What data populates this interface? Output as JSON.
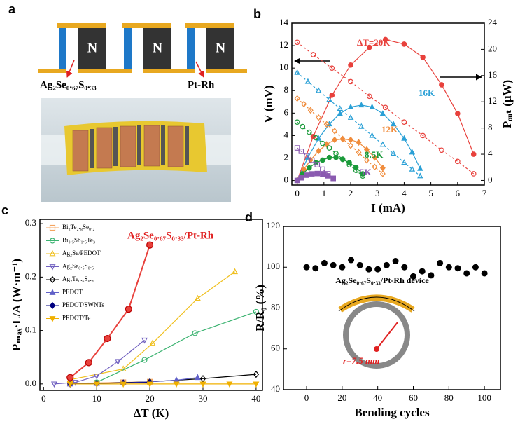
{
  "schematic": {
    "panel_label": "a",
    "block_labels": [
      "N",
      "N",
      "N"
    ],
    "material_label": "Ag₂Se₀.₆₇S₀.₃₃",
    "wire_label": "Pt-Rh"
  },
  "chart_data": [
    {
      "type": "dual-line",
      "panel_label": "b",
      "xlabel": "I (mA)",
      "ylabel": "V (mV)",
      "y2label": "Pₒᵤₜ (μW)",
      "xlim": [
        -0.2,
        7
      ],
      "xticks": [
        0,
        1,
        2,
        3,
        4,
        5,
        6,
        7
      ],
      "ylim": [
        -0.4,
        14
      ],
      "yticks": [
        0,
        2,
        4,
        6,
        8,
        10,
        12,
        14
      ],
      "y2lim": [
        -0.7,
        24
      ],
      "y2ticks": [
        0,
        4,
        8,
        12,
        16,
        20,
        24
      ],
      "groups": [
        {
          "label": "ΔT=20K",
          "color": "#e8413c",
          "marker": "circle",
          "current": [
            0,
            0.6,
            1.3,
            2.0,
            2.7,
            3.3,
            4.0,
            4.7,
            5.4,
            6.0,
            6.6
          ],
          "voltage": [
            12.3,
            11.2,
            10.0,
            8.8,
            7.5,
            6.5,
            5.2,
            4.0,
            2.7,
            1.7,
            0.6
          ],
          "power": [
            0,
            6.7,
            13,
            17.6,
            20.3,
            21.5,
            20.8,
            18.8,
            14.6,
            10.2,
            4.0
          ]
        },
        {
          "label": "16K",
          "color": "#2aa0d6",
          "marker": "triangle",
          "current": [
            0,
            0.4,
            0.8,
            1.2,
            1.6,
            2.0,
            2.4,
            2.8,
            3.2,
            3.6,
            4.0,
            4.3,
            4.6
          ],
          "voltage": [
            9.6,
            8.8,
            8.0,
            7.2,
            6.4,
            5.6,
            4.8,
            4.0,
            3.2,
            2.4,
            1.6,
            1.0,
            0.4
          ],
          "power": [
            0,
            3.5,
            6.4,
            8.6,
            10.2,
            11.2,
            11.5,
            11.2,
            10.2,
            8.6,
            6.4,
            4.3,
            1.8
          ]
        },
        {
          "label": "12K",
          "color": "#f08c3c",
          "marker": "diamond",
          "current": [
            0,
            0.25,
            0.5,
            0.8,
            1.1,
            1.4,
            1.7,
            2.0,
            2.3,
            2.6,
            2.9,
            3.2
          ],
          "voltage": [
            7.3,
            6.8,
            6.25,
            5.6,
            5.0,
            4.4,
            3.7,
            3.1,
            2.5,
            1.8,
            1.2,
            0.6
          ],
          "power": [
            0,
            1.7,
            3.1,
            4.5,
            5.5,
            6.2,
            6.3,
            6.2,
            5.8,
            4.7,
            3.5,
            1.9
          ]
        },
        {
          "label": "8.5K",
          "color": "#1a9a3a",
          "marker": "circle",
          "current": [
            0,
            0.2,
            0.45,
            0.7,
            0.95,
            1.2,
            1.45,
            1.7,
            1.95,
            2.2,
            2.45
          ],
          "voltage": [
            5.2,
            4.8,
            4.3,
            3.8,
            3.3,
            2.9,
            2.4,
            1.9,
            1.4,
            0.9,
            0.4
          ],
          "power": [
            0,
            1.0,
            1.9,
            2.7,
            3.1,
            3.5,
            3.5,
            3.2,
            2.7,
            2.0,
            1.0
          ]
        },
        {
          "label": "5K",
          "color": "#8a5ab0",
          "marker": "square",
          "current": [
            0,
            0.15,
            0.35,
            0.55,
            0.75,
            0.95,
            1.15,
            1.35
          ],
          "voltage": [
            2.9,
            2.6,
            2.2,
            1.8,
            1.4,
            1.0,
            0.6,
            0.2
          ],
          "power": [
            0,
            0.4,
            0.8,
            1.0,
            1.05,
            0.95,
            0.7,
            0.3
          ]
        }
      ]
    },
    {
      "type": "multi-line",
      "panel_label": "c",
      "xlabel": "ΔT (K)",
      "ylabel": "Pₘₐₓ·L/A (W·m⁻¹)",
      "annotation": "Ag₂Se₀.₆₇S₀.₃₃/Pt-Rh",
      "xlim": [
        -0.7,
        41.2
      ],
      "xticks": [
        0,
        10,
        20,
        30,
        40
      ],
      "ylim": [
        -0.012,
        0.308
      ],
      "yticks": [
        {
          "value": 0,
          "label": "0.0"
        },
        0.1,
        0.2,
        0.3
      ],
      "series": [
        {
          "name": "Bi₂Te₂.₈Se₀.₂",
          "color": "#f4a460",
          "marker": "square",
          "filled": false,
          "x": [
            5,
            10,
            15,
            20
          ],
          "values": [
            0.001,
            0.002,
            0.003,
            0.004
          ]
        },
        {
          "name": "Bi₀.₅Sb₁.₅Te₃",
          "color": "#3cb371",
          "marker": "circle",
          "filled": false,
          "x": [
            10,
            19,
            28.5,
            40
          ],
          "values": [
            0.003,
            0.045,
            0.095,
            0.135
          ]
        },
        {
          "name": "Ag₂Se/PEDOT",
          "color": "#f0c020",
          "marker": "triangle",
          "filled": false,
          "x": [
            5,
            15,
            20.5,
            29,
            36
          ],
          "values": [
            0.008,
            0.028,
            0.076,
            0.16,
            0.21
          ]
        },
        {
          "name": "Ag₂Se₀.₅S₀.₅",
          "color": "#7060c0",
          "marker": "triangle-down",
          "filled": false,
          "x": [
            2,
            6,
            10,
            14,
            19
          ],
          "values": [
            0,
            0.003,
            0.015,
            0.042,
            0.082
          ]
        },
        {
          "name": "Ag₂Te₀.₆S₀.₄",
          "color": "#000000",
          "marker": "diamond",
          "filled": false,
          "x": [
            10,
            20,
            30,
            40
          ],
          "values": [
            0.001,
            0.004,
            0.01,
            0.018
          ]
        },
        {
          "name": "PEDOT",
          "color": "#6060c8",
          "marker": "triangle",
          "filled": true,
          "x": [
            5,
            10,
            15,
            20,
            25,
            29
          ],
          "values": [
            0,
            0.001,
            0.002,
            0.004,
            0.007,
            0.012
          ]
        },
        {
          "name": "PEDOT/SWNTs",
          "color": "#000080",
          "marker": "diamond",
          "filled": true,
          "x": [
            5,
            10,
            15,
            20
          ],
          "values": [
            0,
            0.001,
            0.002,
            0.003
          ]
        },
        {
          "name": "PEDOT/Te",
          "color": "#f0b000",
          "marker": "triangle-down",
          "filled": true,
          "x": [
            5,
            10,
            15,
            20,
            25,
            30,
            35,
            40
          ],
          "values": [
            0,
            0,
            0,
            0,
            0,
            0,
            0,
            0
          ]
        },
        {
          "color": "#e8413c",
          "marker": "circle",
          "filled": true,
          "x": [
            5,
            8.5,
            12,
            16,
            20
          ],
          "values": [
            0.012,
            0.04,
            0.085,
            0.14,
            0.26
          ]
        }
      ]
    },
    {
      "type": "scatter",
      "panel_label": "d",
      "xlabel": "Bending cycles",
      "ylabel": "R/R₀ (%)",
      "device_label": "Ag₂Se₀.₆₇S₀.₃₃/Pt-Rh device",
      "radius_label": "r=7.5 mm",
      "xlim": [
        -13,
        109
      ],
      "xticks": [
        0,
        20,
        40,
        60,
        80,
        100
      ],
      "ylim": [
        40,
        120
      ],
      "yticks": [
        40,
        60,
        80,
        100,
        120
      ],
      "color": "#000000",
      "x": [
        0,
        5,
        10,
        15,
        20,
        25,
        30,
        35,
        40,
        45,
        50,
        55,
        60,
        65,
        70,
        75,
        80,
        85,
        90,
        95,
        100
      ],
      "values": [
        100,
        99.5,
        102,
        101,
        100,
        103.5,
        101,
        99,
        99,
        101,
        103,
        100,
        95.5,
        98,
        96,
        102,
        100,
        99.5,
        97,
        100,
        97
      ]
    }
  ]
}
